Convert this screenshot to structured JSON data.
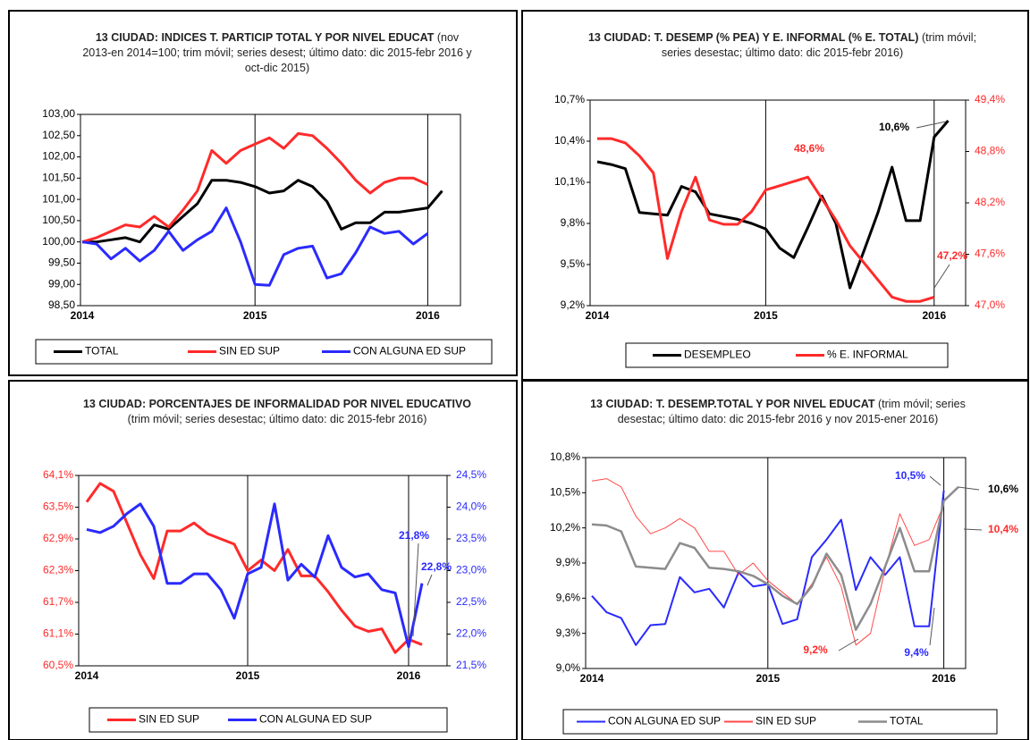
{
  "chart_data": [
    {
      "type": "line",
      "title": "13 CIUDAD: INDICES  T. PARTICIP TOTAL Y POR NIVEL EDUCAT",
      "subtitle": "(nov 2013-en 2014=100; trim móvil; series desest; último dato:  dic 2015-febr 2016 y oct-dic 2015)",
      "categories": [
        "2014",
        null,
        null,
        null,
        null,
        null,
        null,
        null,
        null,
        null,
        null,
        null,
        "2015",
        null,
        null,
        null,
        null,
        null,
        null,
        null,
        null,
        null,
        null,
        null,
        "2016",
        null
      ],
      "ylim": [
        98.5,
        103
      ],
      "yticks": [
        {
          "value": 98.5,
          "label": "98,50"
        },
        {
          "value": 99,
          "label": "99,00"
        },
        {
          "value": 99.5,
          "label": "99,50"
        },
        {
          "value": 100,
          "label": "100,00"
        },
        {
          "value": 100.5,
          "label": "100,50"
        },
        {
          "value": 101,
          "label": "101,00"
        },
        {
          "value": 101.5,
          "label": "101,50"
        },
        {
          "value": 102,
          "label": "102,00"
        },
        {
          "value": 102.5,
          "label": "102,50"
        },
        {
          "value": 103,
          "label": "103,00"
        }
      ],
      "series": [
        {
          "name": "TOTAL",
          "color": "#000000",
          "values": [
            100.0,
            100.0,
            100.05,
            100.1,
            100.0,
            100.4,
            100.3,
            100.6,
            100.9,
            101.45,
            101.45,
            101.4,
            101.3,
            101.15,
            101.2,
            101.45,
            101.3,
            100.95,
            100.3,
            100.45,
            100.45,
            100.7,
            100.7,
            100.75,
            100.8,
            101.2
          ]
        },
        {
          "name": "SIN ED SUP",
          "color": "#ff2a2a",
          "values": [
            100.0,
            100.1,
            100.25,
            100.4,
            100.35,
            100.6,
            100.35,
            100.75,
            101.2,
            102.15,
            101.85,
            102.15,
            102.3,
            102.45,
            102.2,
            102.55,
            102.5,
            102.2,
            101.85,
            101.45,
            101.15,
            101.4,
            101.5,
            101.5,
            101.35,
            null
          ]
        },
        {
          "name": "CON ALGUNA ED SUP",
          "color": "#2a2aff",
          "values": [
            100.0,
            99.95,
            99.6,
            99.85,
            99.55,
            99.8,
            100.25,
            99.8,
            100.05,
            100.25,
            100.8,
            100.0,
            99.0,
            98.98,
            99.7,
            99.85,
            99.9,
            99.15,
            99.25,
            99.75,
            100.35,
            100.2,
            100.25,
            99.95,
            100.2,
            null
          ]
        }
      ],
      "annotations": []
    },
    {
      "type": "line",
      "title": "13 CIUDAD: T. DESEMP  (% PEA) Y E. INFORMAL (% E. TOTAL)",
      "subtitle": "(trim móvil; series desestac; último dato: dic 2015-febr 2016)",
      "categories": [
        "2014",
        null,
        null,
        null,
        null,
        null,
        null,
        null,
        null,
        null,
        null,
        null,
        "2015",
        null,
        null,
        null,
        null,
        null,
        null,
        null,
        null,
        null,
        null,
        null,
        "2016",
        null
      ],
      "ylim": [
        9.2,
        10.7
      ],
      "yticks": [
        {
          "value": 9.2,
          "label": "9,2%"
        },
        {
          "value": 9.5,
          "label": "9,5%"
        },
        {
          "value": 9.8,
          "label": "9,8%"
        },
        {
          "value": 10.1,
          "label": "10,1%"
        },
        {
          "value": 10.4,
          "label": "10,4%"
        },
        {
          "value": 10.7,
          "label": "10,7%"
        }
      ],
      "y2lim": [
        47.0,
        49.4
      ],
      "y2ticks": [
        {
          "value": 47.0,
          "label": "47,0%"
        },
        {
          "value": 47.6,
          "label": "47,6%"
        },
        {
          "value": 48.2,
          "label": "48,2%"
        },
        {
          "value": 48.8,
          "label": "48,8%"
        },
        {
          "value": 49.4,
          "label": "49,4%"
        }
      ],
      "series": [
        {
          "name": "DESEMPLEO",
          "color": "#000000",
          "values": [
            10.25,
            10.23,
            10.2,
            9.88,
            9.87,
            9.86,
            10.07,
            10.03,
            9.87,
            9.85,
            9.83,
            9.8,
            9.76,
            9.62,
            9.55,
            9.77,
            10.0,
            9.8,
            9.33,
            9.6,
            9.88,
            10.21,
            9.82,
            9.82,
            10.43,
            10.55
          ]
        },
        {
          "name": "% E. INFORMAL",
          "color": "#ff2a2a",
          "axis": "y2",
          "values": [
            48.95,
            48.95,
            48.9,
            48.75,
            48.55,
            47.55,
            48.1,
            48.5,
            48.0,
            47.95,
            47.95,
            48.1,
            48.35,
            48.4,
            48.45,
            48.5,
            48.25,
            48.0,
            47.7,
            47.5,
            47.3,
            47.1,
            47.05,
            47.05,
            47.1,
            null
          ]
        }
      ],
      "annotations": [
        {
          "text": "10,6%",
          "color": "#000000"
        },
        {
          "text": "48,6%",
          "color": "#ff2a2a"
        },
        {
          "text": "47,2%",
          "color": "#ff2a2a"
        }
      ]
    },
    {
      "type": "line",
      "title": "13 CIUDAD:  PORCENTAJES  DE INFORMALIDAD  POR NIVEL EDUCATIVO",
      "subtitle": "(trim móvil; series desestac; último dato: dic 2015-febr 2016)",
      "categories": [
        "2014",
        null,
        null,
        null,
        null,
        null,
        null,
        null,
        null,
        null,
        null,
        null,
        "2015",
        null,
        null,
        null,
        null,
        null,
        null,
        null,
        null,
        null,
        null,
        null,
        "2016",
        null
      ],
      "ylim": [
        60.5,
        64.1
      ],
      "yticks": [
        {
          "value": 60.5,
          "label": "60,5%"
        },
        {
          "value": 61.1,
          "label": "61,1%"
        },
        {
          "value": 61.7,
          "label": "61,7%"
        },
        {
          "value": 62.3,
          "label": "62,3%"
        },
        {
          "value": 62.9,
          "label": "62,9%"
        },
        {
          "value": 63.5,
          "label": "63,5%"
        },
        {
          "value": 64.1,
          "label": "64,1%"
        }
      ],
      "y2lim": [
        21.5,
        24.5
      ],
      "y2ticks": [
        {
          "value": 21.5,
          "label": "21,5%"
        },
        {
          "value": 22,
          "label": "22,0%"
        },
        {
          "value": 22.5,
          "label": "22,5%"
        },
        {
          "value": 23,
          "label": "23,0%"
        },
        {
          "value": 23.5,
          "label": "23,5%"
        },
        {
          "value": 24,
          "label": "24,0%"
        },
        {
          "value": 24.5,
          "label": "24,5%"
        }
      ],
      "series": [
        {
          "name": "SIN ED SUP",
          "color": "#ff2a2a",
          "values": [
            63.6,
            63.95,
            63.8,
            63.2,
            62.6,
            62.15,
            63.05,
            63.05,
            63.2,
            63.0,
            62.9,
            62.8,
            62.3,
            62.5,
            62.3,
            62.7,
            62.2,
            62.2,
            61.9,
            61.55,
            61.25,
            61.15,
            61.2,
            60.75,
            61.0,
            60.9
          ]
        },
        {
          "name": "CON ALGUNA ED SUP",
          "color": "#2a2aff",
          "axis": "y2",
          "values": [
            23.65,
            23.6,
            23.7,
            23.9,
            24.05,
            23.7,
            22.8,
            22.8,
            22.95,
            22.95,
            22.7,
            22.25,
            22.95,
            23.05,
            24.05,
            22.85,
            23.1,
            22.9,
            23.55,
            23.05,
            22.9,
            22.95,
            22.7,
            22.65,
            21.8,
            22.8
          ]
        }
      ],
      "annotations": [
        {
          "text": "21,8%",
          "color": "#2a2aff"
        },
        {
          "text": "22,8%",
          "color": "#2a2aff"
        }
      ]
    },
    {
      "type": "line",
      "title": "13 CIUDAD: T. DESEMP.TOTAL  Y  POR NIVEL EDUCAT",
      "subtitle": "(trim móvil; series desestac; último dato:  dic 2015-febr 2016 y  nov 2015-ener 2016)",
      "categories": [
        "2014",
        null,
        null,
        null,
        null,
        null,
        null,
        null,
        null,
        null,
        null,
        null,
        "2015",
        null,
        null,
        null,
        null,
        null,
        null,
        null,
        null,
        null,
        null,
        null,
        "2016",
        null
      ],
      "ylim": [
        9.0,
        10.8
      ],
      "yticks": [
        {
          "value": 9.0,
          "label": "9,0%"
        },
        {
          "value": 9.3,
          "label": "9,3%"
        },
        {
          "value": 9.6,
          "label": "9,6%"
        },
        {
          "value": 9.9,
          "label": "9,9%"
        },
        {
          "value": 10.2,
          "label": "10,2%"
        },
        {
          "value": 10.5,
          "label": "10,5%"
        },
        {
          "value": 10.8,
          "label": "10,8%"
        }
      ],
      "series": [
        {
          "name": "CON ALGUNA ED SUP",
          "color": "#2a2aff",
          "values": [
            9.62,
            9.48,
            9.43,
            9.2,
            9.37,
            9.38,
            9.78,
            9.65,
            9.68,
            9.52,
            9.82,
            9.7,
            9.72,
            9.38,
            9.42,
            9.95,
            10.1,
            10.27,
            9.67,
            9.95,
            9.8,
            9.95,
            9.36,
            9.36,
            10.52,
            null
          ]
        },
        {
          "name": "SIN ED SUP",
          "color": "#ff4a4a",
          "values": [
            10.6,
            10.62,
            10.55,
            10.3,
            10.15,
            10.2,
            10.28,
            10.2,
            10.0,
            10.0,
            9.8,
            9.9,
            9.75,
            9.65,
            9.55,
            9.72,
            9.95,
            9.7,
            9.2,
            9.3,
            9.85,
            10.32,
            10.05,
            10.1,
            10.4,
            null
          ]
        },
        {
          "name": "TOTAL",
          "color": "#8c8c8c",
          "values": [
            10.23,
            10.22,
            10.17,
            9.87,
            9.86,
            9.85,
            10.07,
            10.03,
            9.86,
            9.85,
            9.83,
            9.79,
            9.72,
            9.62,
            9.55,
            9.7,
            9.98,
            9.8,
            9.33,
            9.55,
            9.87,
            10.2,
            9.83,
            9.83,
            10.43,
            10.55
          ]
        }
      ],
      "annotations": [
        {
          "text": "10,5%",
          "color": "#2a2aff"
        },
        {
          "text": "10,6%",
          "color": "#000000"
        },
        {
          "text": "10,4%",
          "color": "#ff2a2a"
        },
        {
          "text": "9,2%",
          "color": "#ff2a2a"
        },
        {
          "text": "9,4%",
          "color": "#2a2aff"
        }
      ]
    }
  ]
}
